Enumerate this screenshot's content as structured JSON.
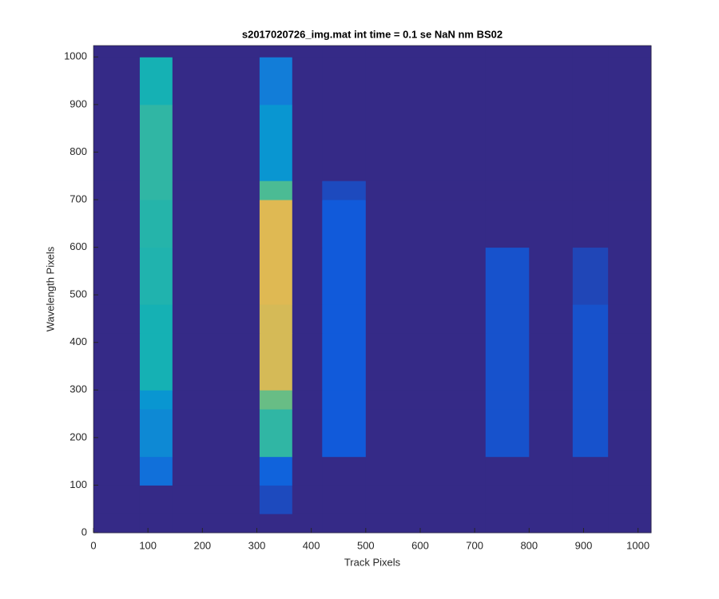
{
  "chart_data": {
    "type": "heatmap",
    "colormap": "parula",
    "title": "s2017020726_img.mat int time = 0.1 se  NaN nm BS02",
    "x_label": "Track Pixels",
    "y_label": "Wavelength Pixels",
    "xlim": [
      0,
      1024
    ],
    "ylim": [
      0,
      1024
    ],
    "xticks": [
      0,
      100,
      200,
      300,
      400,
      500,
      600,
      700,
      800,
      900,
      1000
    ],
    "yticks": [
      0,
      100,
      200,
      300,
      400,
      500,
      600,
      700,
      800,
      900,
      1000
    ],
    "x_bins": [
      0,
      85,
      145,
      305,
      365,
      420,
      500,
      720,
      800,
      880,
      945,
      1024
    ],
    "y_bins": [
      0,
      40,
      100,
      160,
      260,
      300,
      420,
      480,
      600,
      700,
      740,
      900,
      1000,
      1024
    ],
    "values": [
      [
        0,
        0,
        0,
        0,
        0,
        0,
        0,
        0,
        0,
        0,
        0
      ],
      [
        0,
        0,
        0,
        0.08,
        0,
        0,
        0,
        0,
        0,
        0,
        0
      ],
      [
        0,
        0.2,
        0,
        0.15,
        0,
        0,
        0,
        0,
        0,
        0,
        0
      ],
      [
        0,
        0.3,
        0,
        0.55,
        0,
        0.12,
        0,
        0.1,
        0,
        0.1,
        0
      ],
      [
        0,
        0.35,
        0,
        0.65,
        0,
        0.12,
        0,
        0.1,
        0,
        0.1,
        0
      ],
      [
        0,
        0.5,
        0,
        0.85,
        0,
        0.12,
        0,
        0.1,
        0,
        0.1,
        0
      ],
      [
        0,
        0.5,
        0,
        0.85,
        0,
        0.12,
        0,
        0.1,
        0,
        0.1,
        0
      ],
      [
        0,
        0.52,
        0,
        0.87,
        0,
        0.12,
        0,
        0.1,
        0,
        0.07,
        0
      ],
      [
        0,
        0.53,
        0,
        0.87,
        0,
        0.12,
        0,
        0,
        0,
        0,
        0
      ],
      [
        0,
        0.55,
        0,
        0.6,
        0,
        0.08,
        0,
        0,
        0,
        0,
        0
      ],
      [
        0,
        0.55,
        0,
        0.35,
        0,
        0,
        0,
        0,
        0,
        0,
        0
      ],
      [
        0,
        0.5,
        0,
        0.25,
        0,
        0,
        0,
        0,
        0,
        0,
        0
      ],
      [
        0,
        0,
        0,
        0,
        0,
        0,
        0,
        0,
        0,
        0,
        0
      ]
    ]
  }
}
